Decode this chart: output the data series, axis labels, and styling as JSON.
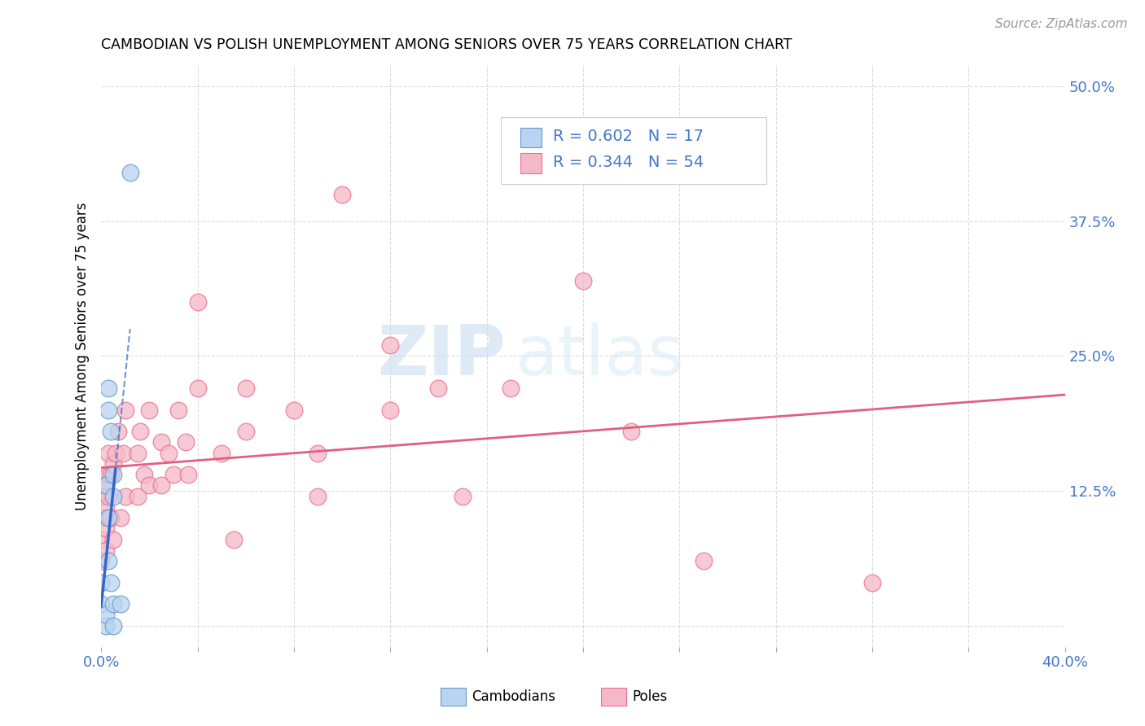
{
  "title": "CAMBODIAN VS POLISH UNEMPLOYMENT AMONG SENIORS OVER 75 YEARS CORRELATION CHART",
  "source": "Source: ZipAtlas.com",
  "ylabel": "Unemployment Among Seniors over 75 years",
  "xlim": [
    0.0,
    0.4
  ],
  "ylim": [
    -0.02,
    0.52
  ],
  "cambodian_color": "#b8d4f0",
  "pole_color": "#f5b8c8",
  "cambodian_edge": "#6699cc",
  "pole_edge": "#e87090",
  "trend_cambodian_color": "#3366cc",
  "trend_pole_color": "#e06080",
  "legend_R_cambodian": "R = 0.602",
  "legend_N_cambodian": "N = 17",
  "legend_R_pole": "R = 0.344",
  "legend_N_pole": "N = 54",
  "watermark_zip": "ZIP",
  "watermark_atlas": "atlas",
  "cambodian_x": [
    0.0,
    0.0,
    0.002,
    0.002,
    0.002,
    0.003,
    0.003,
    0.003,
    0.003,
    0.004,
    0.004,
    0.005,
    0.005,
    0.005,
    0.005,
    0.008,
    0.012
  ],
  "cambodian_y": [
    0.02,
    0.04,
    0.0,
    0.01,
    0.13,
    0.06,
    0.1,
    0.2,
    0.22,
    0.04,
    0.18,
    0.0,
    0.02,
    0.12,
    0.14,
    0.02,
    0.42
  ],
  "pole_x": [
    0.0,
    0.0,
    0.0,
    0.0,
    0.002,
    0.002,
    0.002,
    0.002,
    0.003,
    0.003,
    0.003,
    0.003,
    0.004,
    0.004,
    0.005,
    0.005,
    0.006,
    0.007,
    0.008,
    0.009,
    0.01,
    0.01,
    0.015,
    0.015,
    0.016,
    0.018,
    0.02,
    0.02,
    0.025,
    0.025,
    0.028,
    0.03,
    0.032,
    0.035,
    0.036,
    0.04,
    0.04,
    0.05,
    0.055,
    0.06,
    0.06,
    0.08,
    0.09,
    0.09,
    0.1,
    0.12,
    0.12,
    0.14,
    0.15,
    0.17,
    0.2,
    0.22,
    0.25,
    0.32
  ],
  "pole_y": [
    0.06,
    0.08,
    0.1,
    0.12,
    0.07,
    0.09,
    0.11,
    0.13,
    0.1,
    0.12,
    0.14,
    0.16,
    0.1,
    0.14,
    0.08,
    0.15,
    0.16,
    0.18,
    0.1,
    0.16,
    0.12,
    0.2,
    0.12,
    0.16,
    0.18,
    0.14,
    0.13,
    0.2,
    0.13,
    0.17,
    0.16,
    0.14,
    0.2,
    0.17,
    0.14,
    0.3,
    0.22,
    0.16,
    0.08,
    0.18,
    0.22,
    0.2,
    0.12,
    0.16,
    0.4,
    0.2,
    0.26,
    0.22,
    0.12,
    0.22,
    0.32,
    0.18,
    0.06,
    0.04
  ],
  "background_color": "#ffffff",
  "grid_color": "#dddddd",
  "tick_color": "#4477cc",
  "x_tick_positions": [
    0.0,
    0.04,
    0.08,
    0.12,
    0.16,
    0.2,
    0.24,
    0.28,
    0.32,
    0.36,
    0.4
  ],
  "y_tick_positions": [
    0.0,
    0.125,
    0.25,
    0.375,
    0.5
  ]
}
